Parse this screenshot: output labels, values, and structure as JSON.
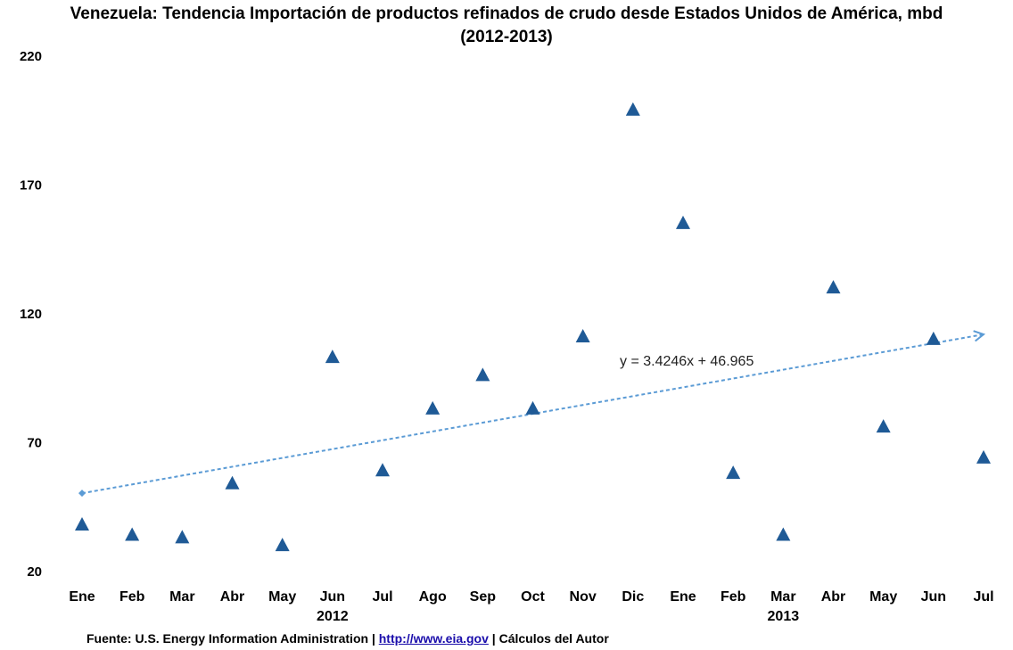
{
  "chart_data": {
    "type": "scatter",
    "title": "Venezuela: Tendencia Importación de productos refinados de crudo desde Estados Unidos de América, mbd",
    "subtitle": "(2012-2013)",
    "categories": [
      "Ene",
      "Feb",
      "Mar",
      "Abr",
      "May",
      "Jun",
      "Jul",
      "Ago",
      "Sep",
      "Oct",
      "Nov",
      "Dic",
      "Ene",
      "Feb",
      "Mar",
      "Abr",
      "May",
      "Jun",
      "Jul"
    ],
    "year_labels": [
      {
        "label": "2012",
        "category_index": 5
      },
      {
        "label": "2013",
        "category_index": 14
      }
    ],
    "series": [
      {
        "values": [
          38,
          34,
          33,
          54,
          30,
          103,
          59,
          83,
          96,
          83,
          111,
          199,
          155,
          58,
          34,
          130,
          76,
          110,
          64
        ],
        "marker": "triangle",
        "color": "#1f5a96"
      }
    ],
    "trendline": {
      "type": "linear",
      "slope": 3.4246,
      "intercept": 46.965,
      "equation_label": "y = 3.4246x + 46.965",
      "color": "#5b9bd5"
    },
    "ylim": [
      20,
      220
    ],
    "yticks": [
      "20",
      "70",
      "120",
      "170",
      "220"
    ],
    "grid": false,
    "legend": "none"
  },
  "footer": {
    "source_prefix": "Fuente:  U.S. Energy Information Administration  |",
    "link": "http://www.eia.gov",
    "suffix": "| Cálculos del Autor"
  }
}
